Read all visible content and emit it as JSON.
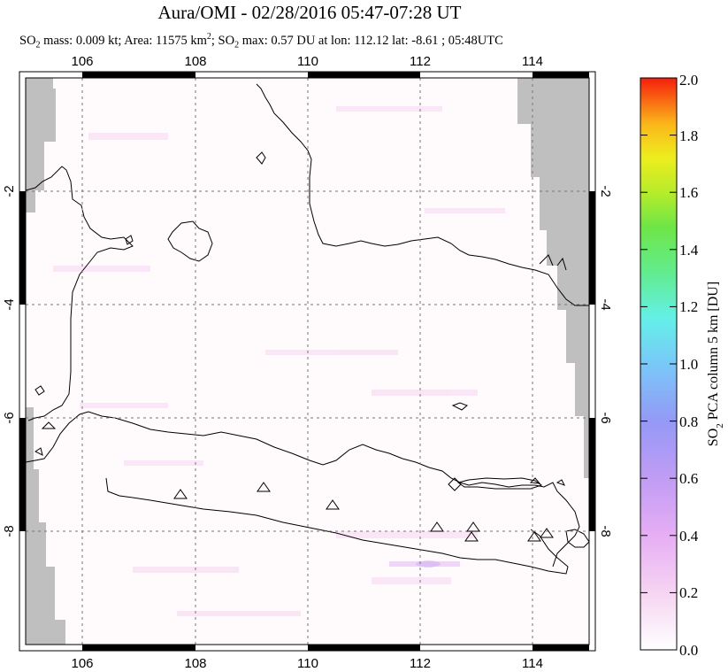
{
  "title": "Aura/OMI - 02/28/2016 05:47-07:28 UT",
  "subtitle": {
    "so2_mass_label": "SO",
    "so2_mass_rest": " mass: 0.009 kt; Area: 11575 km",
    "area_sup": "2",
    "so2_max_label": "; SO",
    "so2_max_rest": " max: 0.57 DU at lon: 112.12 lat: -8.61 ; 05:48UTC",
    "sub2": "2"
  },
  "map": {
    "lon_ticks": [
      "106",
      "108",
      "110",
      "112",
      "114"
    ],
    "lat_ticks_left": [
      "-2",
      "-4",
      "-6",
      "-8"
    ],
    "lat_ticks_right": [
      "-2",
      "-4",
      "-6",
      "-8"
    ],
    "lon_range": [
      105,
      115
    ],
    "lat_range": [
      -10,
      0
    ],
    "volcano_count": 10
  },
  "colorbar": {
    "title_pre": "SO",
    "title_sub": "2",
    "title_post": " PCA column 5 km [DU]",
    "ticks": [
      "2.0",
      "1.8",
      "1.6",
      "1.4",
      "1.2",
      "1.0",
      "0.8",
      "0.6",
      "0.4",
      "0.2",
      "0.0"
    ],
    "range": [
      0.0,
      2.0
    ],
    "colors": [
      "#ffffff",
      "#f6c8f0",
      "#d9a3f2",
      "#a98ef4",
      "#7fa6f7",
      "#5fd3f4",
      "#66f0c8",
      "#63ec6f",
      "#a8ef2a",
      "#e8ee1b",
      "#fbc21a",
      "#fb7e13",
      "#f52b0d"
    ]
  }
}
